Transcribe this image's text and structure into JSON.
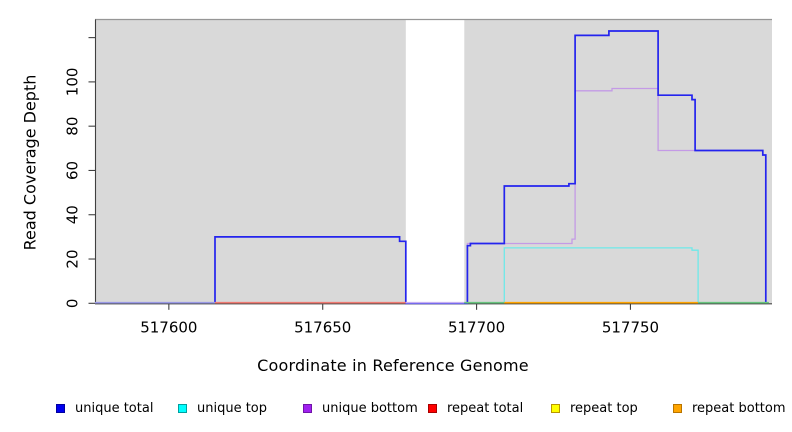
{
  "chart_data": {
    "type": "line",
    "subtype": "step-function read coverage plot",
    "title": "",
    "xlabel": "Coordinate in Reference Genome",
    "ylabel": "Read Coverage Depth",
    "xlim": [
      517576,
      517796
    ],
    "ylim": [
      0,
      128
    ],
    "grid": false,
    "plot_background": "#d9d9d9",
    "plot_background_top_border": "#969696",
    "axis_color": "#404040",
    "no_data_gap": {
      "from": 517677,
      "to": 517696,
      "fill": "#ffffff"
    },
    "x_ticks": [
      {
        "value": 517600,
        "label": "517600"
      },
      {
        "value": 517650,
        "label": "517650"
      },
      {
        "value": 517700,
        "label": "517700"
      },
      {
        "value": 517750,
        "label": "517750"
      }
    ],
    "y_ticks": [
      {
        "value": 0,
        "label": "0"
      },
      {
        "value": 20,
        "label": "20"
      },
      {
        "value": 40,
        "label": "40"
      },
      {
        "value": 60,
        "label": "60"
      },
      {
        "value": 80,
        "label": "80"
      },
      {
        "value": 100,
        "label": "100"
      },
      {
        "value": 120,
        "label": ""
      }
    ],
    "series": [
      {
        "name": "unique top",
        "color": "#6ee9e9",
        "width": 1.3,
        "start": 517709,
        "start_depth": 0,
        "steps": [
          [
            517709,
            25
          ],
          [
            517770,
            24
          ],
          [
            517772,
            0
          ]
        ]
      },
      {
        "name": "unique bottom",
        "color": "#c49ae6",
        "width": 1.3,
        "start": 517697,
        "start_depth": 0,
        "steps": [
          [
            517697,
            27
          ],
          [
            517731,
            29
          ],
          [
            517732,
            96
          ],
          [
            517744,
            97
          ],
          [
            517759,
            69
          ],
          [
            517793,
            67
          ],
          [
            517794,
            0
          ]
        ]
      },
      {
        "name": "unique total",
        "color": "#2424ee",
        "width": 1.7,
        "start": 517615,
        "start_depth": 0,
        "steps": [
          [
            517615,
            30
          ],
          [
            517675,
            28
          ],
          [
            517677,
            0
          ],
          [
            517697,
            26
          ],
          [
            517698,
            27
          ],
          [
            517709,
            53
          ],
          [
            517730,
            54
          ],
          [
            517732,
            121
          ],
          [
            517743,
            123
          ],
          [
            517759,
            94
          ],
          [
            517770,
            92
          ],
          [
            517771,
            69
          ],
          [
            517793,
            67
          ],
          [
            517794,
            0
          ]
        ]
      },
      {
        "name": "repeat total",
        "depth": 0,
        "from": 517615,
        "to": 517677,
        "color": "#f07a72"
      },
      {
        "name": "repeat top",
        "depth": 0,
        "from": 517696,
        "to": 517795,
        "color": "#ffff00"
      },
      {
        "name": "repeat bottom",
        "depth": 0,
        "from": 517709,
        "to": 517772,
        "color": "#ffa500"
      }
    ],
    "baseline_segments": [
      {
        "from": 517576,
        "to": 517615,
        "color": "#9a9ae6",
        "note": "unique lines overlapping at depth 0"
      },
      {
        "from": 517615,
        "to": 517677,
        "color": "#f07a72",
        "note": "repeat total at depth 0"
      },
      {
        "from": 517677,
        "to": 517696,
        "color": "#c6aff0",
        "note": "unique lines at depth 0 across gap"
      },
      {
        "from": 517696,
        "to": 517709,
        "color": "#68c47e",
        "note": "repeat top over unique top at depth 0"
      },
      {
        "from": 517709,
        "to": 517772,
        "color": "#ffa500",
        "note": "repeat bottom at depth 0"
      },
      {
        "from": 517772,
        "to": 517795,
        "color": "#68c47e",
        "note": "repeat top over unique top at depth 0"
      }
    ],
    "legend": [
      {
        "label": "unique total",
        "color": "#0000ee",
        "border": "#0000a0"
      },
      {
        "label": "unique top",
        "color": "#00ffff",
        "border": "#00a0a0"
      },
      {
        "label": "unique bottom",
        "color": "#a020f0",
        "border": "#7014a8"
      },
      {
        "label": "repeat total",
        "color": "#ff0000",
        "border": "#a80000"
      },
      {
        "label": "repeat top",
        "color": "#ffff00",
        "border": "#b89600"
      },
      {
        "label": "repeat bottom",
        "color": "#ffa500",
        "border": "#b87400"
      }
    ],
    "legend_position": "bottom"
  }
}
